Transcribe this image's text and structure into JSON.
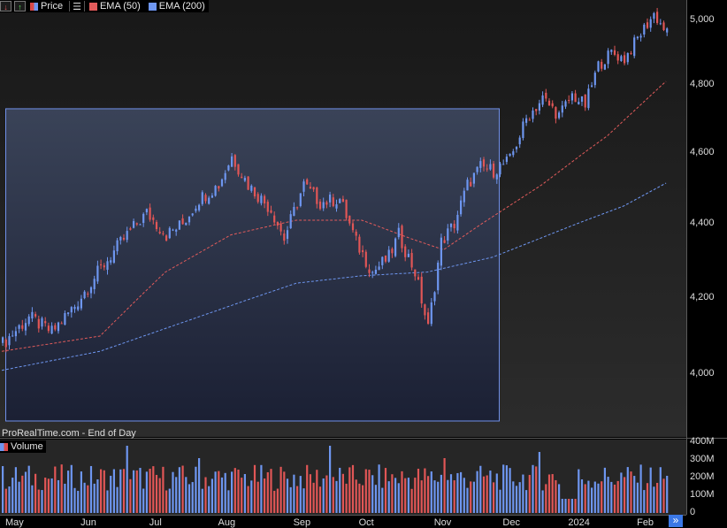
{
  "legend": {
    "price_label": "Price",
    "ema50_label": "EMA (50)",
    "ema200_label": "EMA (200)",
    "volume_label": "Volume"
  },
  "watermark": "ProRealTime.com - End of Day",
  "scroll_button": "»",
  "colors": {
    "up_candle": "#6e96f0",
    "down_candle": "#e15656",
    "ema50": "#e25b5b",
    "ema200": "#6e96f0",
    "selection_border": "#6f8fe8"
  },
  "icons": [
    "arrow-down-icon",
    "arrow-up-icon",
    "menu-icon",
    "double-chevron-right-icon"
  ],
  "chart_data": {
    "type": "candlestick",
    "price_axis": {
      "ticks": [
        4000,
        4200,
        4400,
        4600,
        4800,
        5000
      ],
      "tick_labels": [
        "4,000",
        "4,200",
        "4,400",
        "4,600",
        "4,800",
        "5,000"
      ]
    },
    "volume_axis": {
      "ticks": [
        0,
        100,
        200,
        300,
        400
      ],
      "tick_labels": [
        "0",
        "100M",
        "200M",
        "300M",
        "400M"
      ]
    },
    "x_labels": [
      "May",
      "Jun",
      "Jul",
      "Aug",
      "Sep",
      "Oct",
      "Nov",
      "Dec",
      "2024",
      "Feb"
    ],
    "month_start_index": [
      0,
      23,
      44,
      65,
      88,
      108,
      131,
      152,
      172,
      193
    ],
    "close_anchors": [
      [
        0,
        4080
      ],
      [
        8,
        4150
      ],
      [
        15,
        4110
      ],
      [
        22,
        4180
      ],
      [
        30,
        4280
      ],
      [
        38,
        4370
      ],
      [
        44,
        4430
      ],
      [
        50,
        4370
      ],
      [
        55,
        4400
      ],
      [
        60,
        4470
      ],
      [
        66,
        4510
      ],
      [
        70,
        4590
      ],
      [
        75,
        4510
      ],
      [
        82,
        4440
      ],
      [
        86,
        4360
      ],
      [
        92,
        4510
      ],
      [
        97,
        4460
      ],
      [
        103,
        4470
      ],
      [
        108,
        4350
      ],
      [
        113,
        4270
      ],
      [
        118,
        4310
      ],
      [
        121,
        4370
      ],
      [
        126,
        4270
      ],
      [
        130,
        4120
      ],
      [
        134,
        4350
      ],
      [
        138,
        4400
      ],
      [
        142,
        4510
      ],
      [
        146,
        4560
      ],
      [
        150,
        4550
      ],
      [
        155,
        4580
      ],
      [
        160,
        4700
      ],
      [
        165,
        4760
      ],
      [
        170,
        4710
      ],
      [
        174,
        4770
      ],
      [
        178,
        4740
      ],
      [
        182,
        4860
      ],
      [
        186,
        4900
      ],
      [
        190,
        4880
      ],
      [
        195,
        4960
      ],
      [
        199,
        5020
      ],
      [
        203,
        4960
      ]
    ],
    "ema50_approx": [
      [
        0,
        4060
      ],
      [
        30,
        4100
      ],
      [
        50,
        4270
      ],
      [
        70,
        4370
      ],
      [
        90,
        4410
      ],
      [
        110,
        4410
      ],
      [
        125,
        4360
      ],
      [
        135,
        4330
      ],
      [
        145,
        4390
      ],
      [
        165,
        4510
      ],
      [
        185,
        4650
      ],
      [
        204,
        4820
      ]
    ],
    "ema200_approx": [
      [
        0,
        4010
      ],
      [
        30,
        4060
      ],
      [
        60,
        4150
      ],
      [
        90,
        4240
      ],
      [
        110,
        4260
      ],
      [
        130,
        4270
      ],
      [
        150,
        4310
      ],
      [
        170,
        4380
      ],
      [
        190,
        4450
      ],
      [
        204,
        4520
      ]
    ],
    "volume_range_M": [
      60,
      400
    ],
    "selection_box": {
      "start_index": 0,
      "end_index": 150,
      "price_low": 3870,
      "price_high": 4730
    }
  }
}
